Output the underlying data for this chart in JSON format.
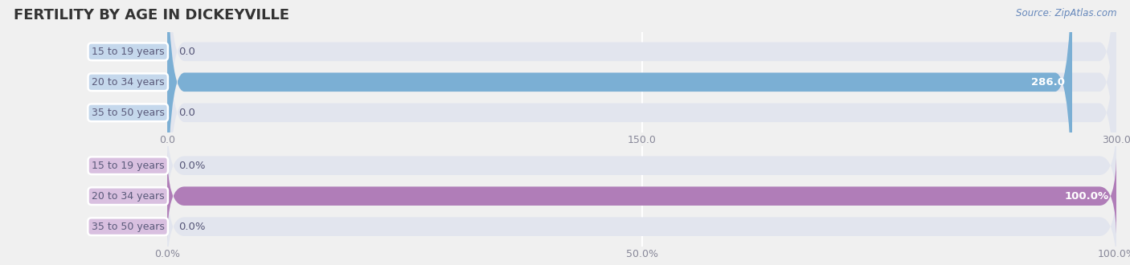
{
  "title": "FERTILITY BY AGE IN DICKEYVILLE",
  "source_text": "Source: ZipAtlas.com",
  "top_chart": {
    "categories": [
      "15 to 19 years",
      "20 to 34 years",
      "35 to 50 years"
    ],
    "values": [
      0.0,
      286.0,
      0.0
    ],
    "bar_color": "#7bafd4",
    "row_bg_color": "#e2e5ee",
    "value_labels": [
      "0.0",
      "286.0",
      "0.0"
    ],
    "xlim": [
      0,
      300.0
    ],
    "xticks": [
      0.0,
      150.0,
      300.0
    ],
    "xtick_labels": [
      "0.0",
      "150.0",
      "300.0"
    ]
  },
  "bottom_chart": {
    "categories": [
      "15 to 19 years",
      "20 to 34 years",
      "35 to 50 years"
    ],
    "values": [
      0.0,
      100.0,
      0.0
    ],
    "bar_color": "#b07db8",
    "row_bg_color": "#e2e5ee",
    "value_labels": [
      "0.0%",
      "100.0%",
      "0.0%"
    ],
    "xlim": [
      0,
      100.0
    ],
    "xticks": [
      0.0,
      50.0,
      100.0
    ],
    "xtick_labels": [
      "0.0%",
      "50.0%",
      "100.0%"
    ]
  },
  "label_box_color_top": "#c5d8ec",
  "label_box_color_bottom": "#d9c0e0",
  "label_text_color": "#5a5a7a",
  "fig_bg_color": "#f0f0f0",
  "chart_bg_color": "#f0f0f0",
  "title_color": "#333333",
  "title_fontsize": 13,
  "bar_height": 0.62,
  "value_fontsize": 9.5,
  "tick_fontsize": 9,
  "label_fontsize": 9
}
